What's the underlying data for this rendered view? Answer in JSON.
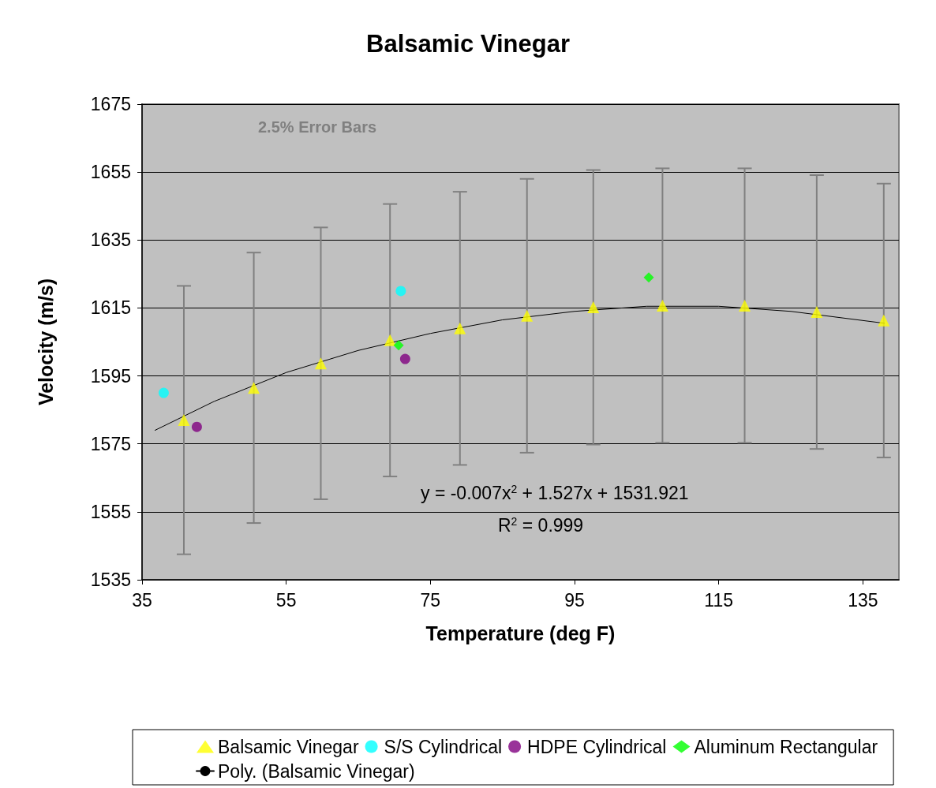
{
  "chart_data": {
    "type": "scatter",
    "title": "Balsamic Vinegar",
    "xlabel": "Temperature (deg F)",
    "ylabel": "Velocity (m/s)",
    "annotations": [
      "2.5% Error Bars",
      "y = -0.007x$^{2}$ + 1.527x + 1531.921",
      "R$^{2}$ = 0.999"
    ],
    "xlim": [
      35,
      140
    ],
    "xticks": [
      35,
      55,
      75,
      95,
      115,
      135
    ],
    "ylim": [
      1535,
      1675
    ],
    "yticks": [
      1535,
      1555,
      1575,
      1595,
      1615,
      1635,
      1655,
      1675
    ],
    "grid": "y",
    "legend": "bottom",
    "series": [
      {
        "name": "Balsamic Vinegar",
        "marker": "triangle",
        "color": "#ffff00",
        "x": [
          40.8,
          50.5,
          59.8,
          69.4,
          79.1,
          88.4,
          97.6,
          107.2,
          118.6,
          128.6,
          137.9
        ],
        "values": [
          1582,
          1591.5,
          1598.7,
          1605.5,
          1609,
          1612.7,
          1615.2,
          1615.7,
          1615.7,
          1613.8,
          1611.3
        ],
        "errors": [
          39.5,
          39.8,
          40,
          40.1,
          40.2,
          40.3,
          40.4,
          40.4,
          40.4,
          40.3,
          40.3
        ]
      },
      {
        "name": "S/S Cylindrical",
        "marker": "circle",
        "color": "#00ffff",
        "x": [
          38,
          70.9
        ],
        "values": [
          1590,
          1620
        ]
      },
      {
        "name": "HDPE Cylindrical",
        "marker": "circle",
        "color": "#800080",
        "x": [
          42.6,
          71.5
        ],
        "values": [
          1580,
          1600
        ]
      },
      {
        "name": "Aluminum Rectangular",
        "marker": "diamond",
        "color": "#00ff00",
        "x": [
          70.6,
          105.3
        ],
        "values": [
          1604,
          1624
        ]
      },
      {
        "name": "Poly. (Balsamic Vinegar)",
        "type": "line",
        "marker": "none",
        "line_style": "solid",
        "color": "#000000",
        "x": [
          36.8,
          45,
          55,
          65,
          75,
          85,
          95,
          105,
          115,
          125,
          138
        ],
        "values": [
          1579,
          1587.5,
          1596,
          1602.5,
          1607.5,
          1611.5,
          1614,
          1615.5,
          1615.5,
          1614,
          1610.5
        ]
      }
    ]
  }
}
